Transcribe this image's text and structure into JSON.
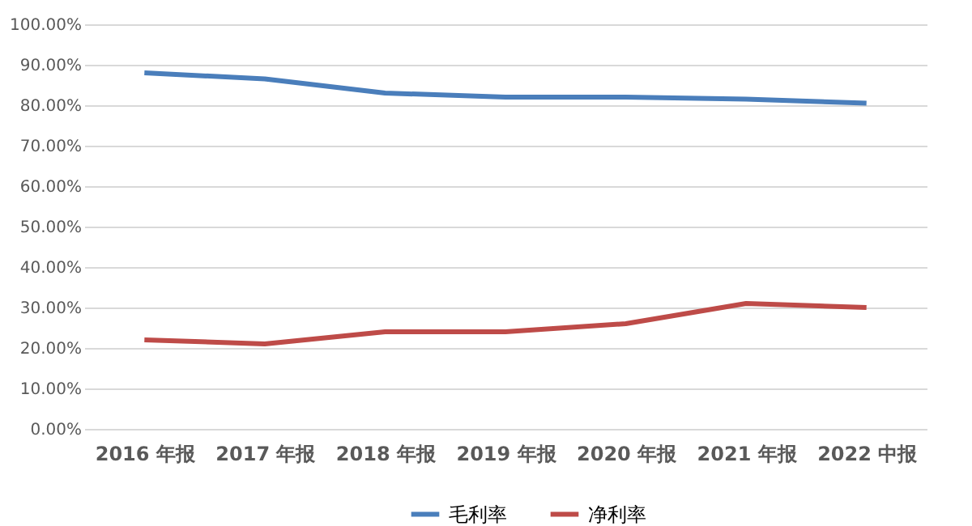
{
  "chart_data": {
    "type": "line",
    "categories": [
      "2016 年报",
      "2017 年报",
      "2018 年报",
      "2019 年报",
      "2020 年报",
      "2021 年报",
      "2022 中报"
    ],
    "series": [
      {
        "name": "毛利率",
        "color": "#4a7ebb",
        "values": [
          88,
          86.5,
          83,
          82,
          82,
          81.5,
          80.5
        ]
      },
      {
        "name": "净利率",
        "color": "#be4b48",
        "values": [
          22,
          21,
          24,
          24,
          26,
          31,
          30
        ]
      }
    ],
    "ylim": [
      0,
      100
    ],
    "yticks": [
      {
        "value": 0,
        "label": "0.00%"
      },
      {
        "value": 10,
        "label": "10.00%"
      },
      {
        "value": 20,
        "label": "20.00%"
      },
      {
        "value": 30,
        "label": "30.00%"
      },
      {
        "value": 40,
        "label": "40.00%"
      },
      {
        "value": 50,
        "label": "50.00%"
      },
      {
        "value": 60,
        "label": "60.00%"
      },
      {
        "value": 70,
        "label": "70.00%"
      },
      {
        "value": 80,
        "label": "80.00%"
      },
      {
        "value": 90,
        "label": "90.00%"
      },
      {
        "value": 100,
        "label": "100.00%"
      }
    ],
    "grid": "y",
    "legend": "bottom",
    "marker": "none",
    "line_style": "solid"
  }
}
